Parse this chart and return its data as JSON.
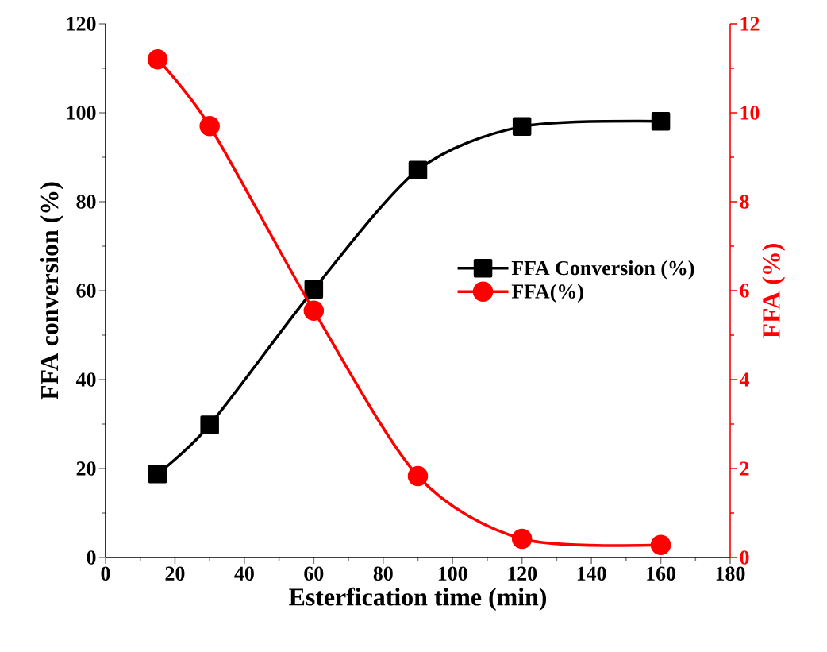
{
  "chart_data": {
    "type": "line",
    "xlabel": "Esterfication time (min)",
    "ylabel": "FFA conversion (%)",
    "y2label": "FFA (%)",
    "x": [
      15,
      30,
      60,
      90,
      120,
      160
    ],
    "series": [
      {
        "name": "FFA Conversion (%)",
        "color": "#000000",
        "marker": "square",
        "values": [
          18.8,
          29.8,
          60.3,
          87.1,
          96.9,
          98.1
        ]
      },
      {
        "name": "FFA(%)",
        "color": "#ff0000",
        "marker": "circle",
        "axis": "y2",
        "values": [
          11.2,
          9.7,
          5.55,
          1.83,
          0.42,
          0.28
        ]
      }
    ],
    "xlim": [
      0,
      180
    ],
    "xticks": [
      0,
      20,
      40,
      60,
      80,
      100,
      120,
      140,
      160,
      180
    ],
    "ylim": [
      0,
      120
    ],
    "yticks": [
      0,
      20,
      40,
      60,
      80,
      100,
      120
    ],
    "y2lim": [
      0,
      12
    ],
    "y2ticks": [
      0,
      2,
      4,
      6,
      8,
      10,
      12
    ],
    "legend": "right",
    "grid": false,
    "line_style": "solid"
  }
}
